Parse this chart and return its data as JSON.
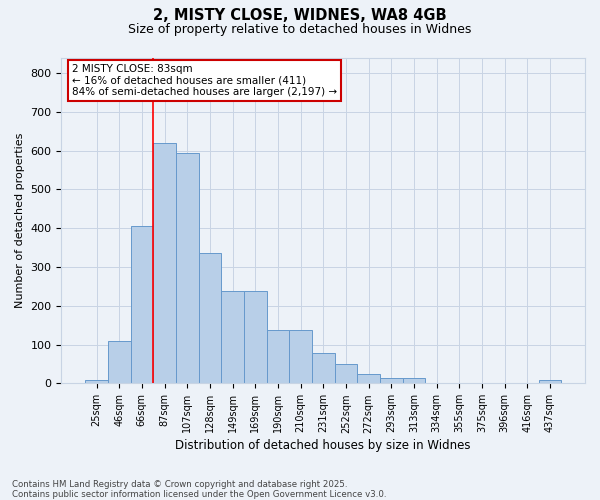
{
  "title_line1": "2, MISTY CLOSE, WIDNES, WA8 4GB",
  "title_line2": "Size of property relative to detached houses in Widnes",
  "xlabel": "Distribution of detached houses by size in Widnes",
  "ylabel": "Number of detached properties",
  "categories": [
    "25sqm",
    "46sqm",
    "66sqm",
    "87sqm",
    "107sqm",
    "128sqm",
    "149sqm",
    "169sqm",
    "190sqm",
    "210sqm",
    "231sqm",
    "252sqm",
    "272sqm",
    "293sqm",
    "313sqm",
    "334sqm",
    "355sqm",
    "375sqm",
    "396sqm",
    "416sqm",
    "437sqm"
  ],
  "values": [
    8,
    110,
    405,
    620,
    595,
    335,
    238,
    238,
    138,
    138,
    78,
    50,
    25,
    15,
    15,
    0,
    0,
    0,
    0,
    0,
    8
  ],
  "bar_color": "#b8cfe8",
  "bar_edge_color": "#6699cc",
  "grid_color": "#c8d4e4",
  "background_color": "#edf2f8",
  "red_line_x": 2.5,
  "annotation_text": "2 MISTY CLOSE: 83sqm\n← 16% of detached houses are smaller (411)\n84% of semi-detached houses are larger (2,197) →",
  "annotation_box_facecolor": "#ffffff",
  "annotation_box_edgecolor": "#cc0000",
  "ylim_max": 840,
  "yticks": [
    0,
    100,
    200,
    300,
    400,
    500,
    600,
    700,
    800
  ],
  "footer": "Contains HM Land Registry data © Crown copyright and database right 2025.\nContains public sector information licensed under the Open Government Licence v3.0."
}
